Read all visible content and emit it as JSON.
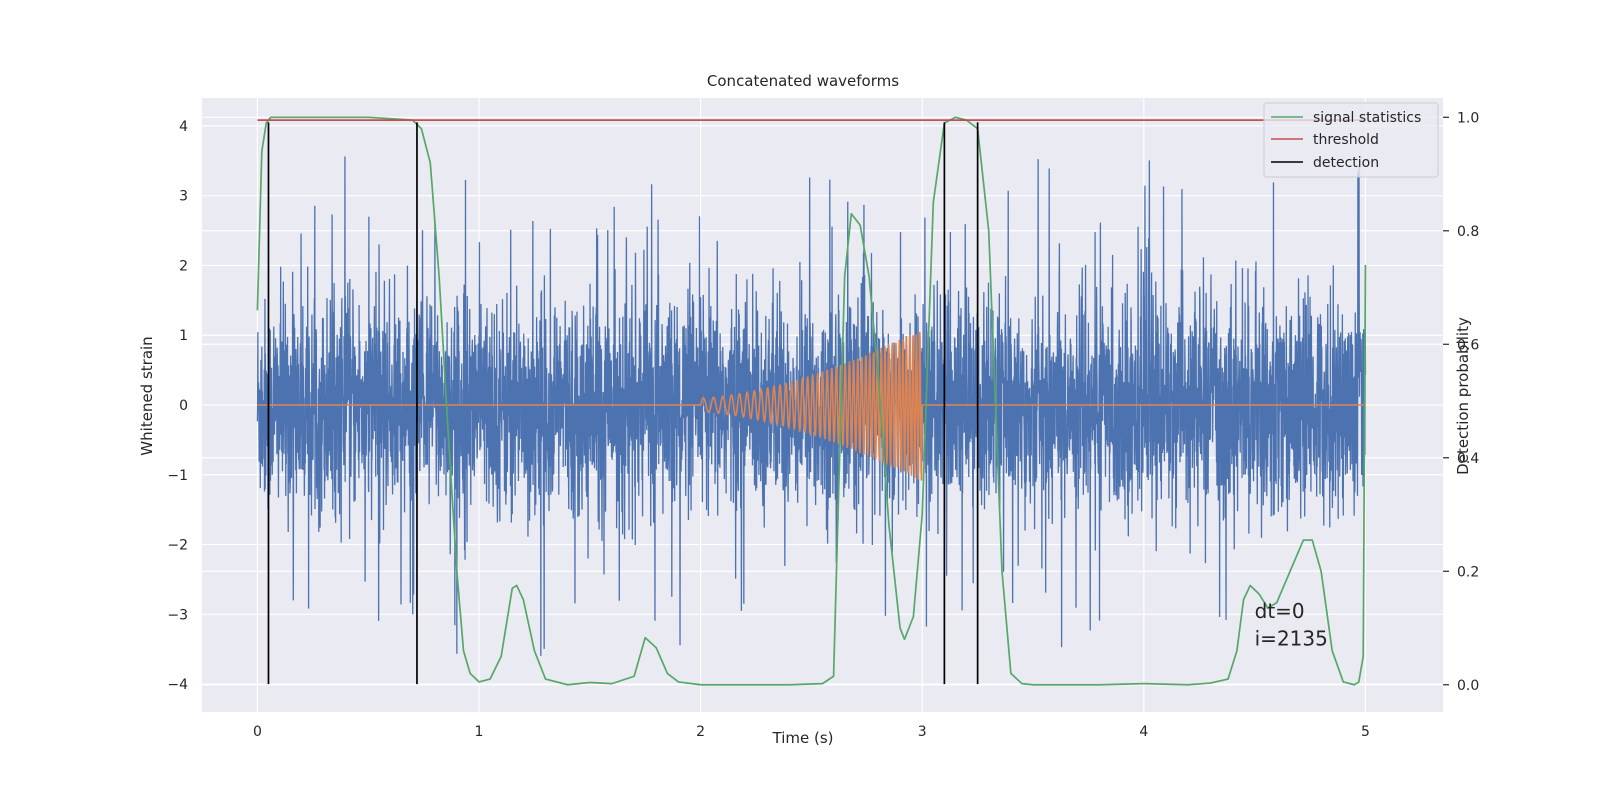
{
  "chart_data": {
    "type": "line",
    "title": "Concatenated waveforms",
    "xlabel": "Time (s)",
    "ylabel": "Whitened strain",
    "y2label": "Detection probability",
    "xlim": [
      -0.25,
      5.35
    ],
    "ylim": [
      -4.4,
      4.4
    ],
    "y2lim": [
      -0.048,
      1.034
    ],
    "xticks": [
      0,
      1,
      2,
      3,
      4,
      5
    ],
    "xtick_labels": [
      "0",
      "1",
      "2",
      "3",
      "4",
      "5"
    ],
    "yticks": [
      -4,
      -3,
      -2,
      -1,
      0,
      1,
      2,
      3,
      4
    ],
    "ytick_labels": [
      "−4",
      "−3",
      "−2",
      "−1",
      "0",
      "1",
      "2",
      "3",
      "4"
    ],
    "y2ticks": [
      0.0,
      0.2,
      0.4,
      0.6,
      0.8,
      1.0
    ],
    "y2tick_labels": [
      "0.0",
      "0.2",
      "0.4",
      "0.6",
      "0.8",
      "1.0"
    ],
    "grid": true,
    "legend_position": "top-right",
    "colors": {
      "strain": "#4c72b0",
      "waveform": "#dd8452",
      "signal_statistics": "#55a868",
      "threshold": "#c44e52",
      "detection": "#000000",
      "background": "#eaeaf2",
      "grid": "#ffffff"
    },
    "series": [
      {
        "name": "signal statistics",
        "axis": "right",
        "x": [
          0.0,
          0.02,
          0.04,
          0.06,
          0.1,
          0.5,
          0.7,
          0.74,
          0.78,
          0.82,
          0.86,
          0.9,
          0.93,
          0.96,
          1.0,
          1.05,
          1.1,
          1.15,
          1.17,
          1.2,
          1.25,
          1.3,
          1.4,
          1.5,
          1.6,
          1.7,
          1.75,
          1.8,
          1.85,
          1.9,
          2.0,
          2.2,
          2.4,
          2.55,
          2.6,
          2.62,
          2.65,
          2.68,
          2.72,
          2.76,
          2.8,
          2.85,
          2.9,
          2.92,
          2.96,
          3.0,
          3.05,
          3.1,
          3.15,
          3.2,
          3.25,
          3.3,
          3.33,
          3.36,
          3.4,
          3.45,
          3.5,
          3.6,
          3.8,
          4.0,
          4.2,
          4.3,
          4.38,
          4.42,
          4.45,
          4.48,
          4.52,
          4.56,
          4.6,
          4.66,
          4.72,
          4.76,
          4.8,
          4.85,
          4.9,
          4.95,
          4.97,
          4.99,
          5.0
        ],
        "values": [
          0.66,
          0.94,
          0.99,
          1.0,
          1.0,
          1.0,
          0.995,
          0.98,
          0.92,
          0.72,
          0.45,
          0.2,
          0.06,
          0.02,
          0.005,
          0.01,
          0.05,
          0.17,
          0.175,
          0.15,
          0.06,
          0.01,
          0.0,
          0.004,
          0.002,
          0.015,
          0.083,
          0.065,
          0.02,
          0.005,
          0.0,
          0.0,
          0.0,
          0.002,
          0.015,
          0.3,
          0.72,
          0.83,
          0.81,
          0.72,
          0.55,
          0.28,
          0.1,
          0.08,
          0.12,
          0.3,
          0.85,
          0.99,
          1.0,
          0.995,
          0.98,
          0.8,
          0.5,
          0.2,
          0.02,
          0.002,
          0.0,
          0.0,
          0.0,
          0.002,
          0.0,
          0.003,
          0.01,
          0.06,
          0.15,
          0.175,
          0.16,
          0.135,
          0.145,
          0.2,
          0.255,
          0.255,
          0.2,
          0.06,
          0.005,
          0.0,
          0.005,
          0.05,
          0.74
        ]
      },
      {
        "name": "threshold",
        "axis": "right",
        "x": [
          0.0,
          5.0
        ],
        "values": [
          0.995,
          0.995
        ]
      },
      {
        "name": "detection",
        "axis": "left",
        "type": "vlines",
        "x": [
          0.05,
          0.72,
          3.1,
          3.25
        ],
        "y_range": [
          -4.0,
          4.05
        ]
      },
      {
        "axis": "left",
        "type": "noise",
        "x_range": [
          0.0,
          5.0
        ],
        "envelope_center": [
          -1.25,
          1.25
        ],
        "spike_range": [
          -4.0,
          4.05
        ]
      },
      {
        "axis": "left",
        "type": "chirp",
        "x_range": [
          0.0,
          5.0
        ],
        "chirp_start": 2.0,
        "chirp_end": 3.0,
        "amplitude_start": 0.1,
        "amplitude_end": 1.1
      }
    ],
    "legend": [
      {
        "label": "signal statistics",
        "color": "#55a868"
      },
      {
        "label": "threshold",
        "color": "#c44e52"
      },
      {
        "label": "detection",
        "color": "#000000"
      }
    ],
    "annotations": [
      {
        "text": "dt=0",
        "x": 4.5,
        "y": -3.05
      },
      {
        "text": "i=2135",
        "x": 4.5,
        "y": -3.45
      }
    ]
  }
}
